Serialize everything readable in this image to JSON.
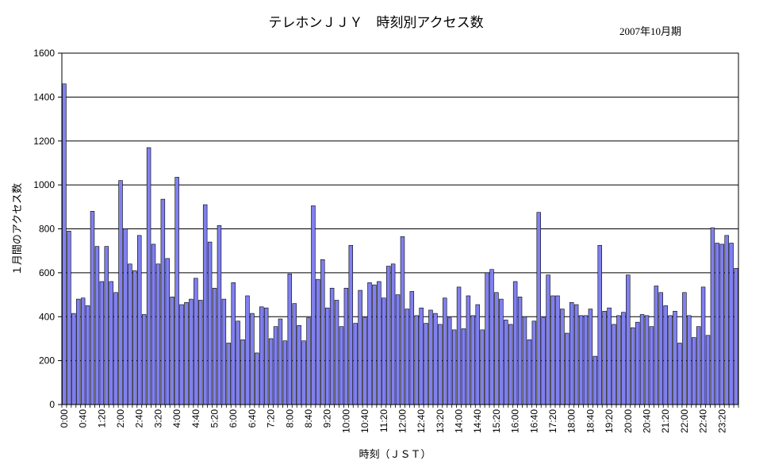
{
  "chart_data": {
    "type": "bar",
    "title": "テレホンＪＪＹ　時刻別アクセス数",
    "subtitle": "2007年10月期",
    "xlabel": "時刻（ＪＳＴ）",
    "ylabel": "１月間のアクセス数",
    "ylim": [
      0,
      1600
    ],
    "yticks": [
      0,
      200,
      400,
      600,
      800,
      1000,
      1200,
      1400,
      1600
    ],
    "grid": true,
    "bar_color": "#8080f0",
    "categories": [
      "0:00",
      "0:10",
      "0:20",
      "0:30",
      "0:40",
      "0:50",
      "1:00",
      "1:10",
      "1:20",
      "1:30",
      "1:40",
      "1:50",
      "2:00",
      "2:10",
      "2:20",
      "2:30",
      "2:40",
      "2:50",
      "3:00",
      "3:10",
      "3:20",
      "3:30",
      "3:40",
      "3:50",
      "4:00",
      "4:10",
      "4:20",
      "4:30",
      "4:40",
      "4:50",
      "5:00",
      "5:10",
      "5:20",
      "5:30",
      "5:40",
      "5:50",
      "6:00",
      "6:10",
      "6:20",
      "6:30",
      "6:40",
      "6:50",
      "7:00",
      "7:10",
      "7:20",
      "7:30",
      "7:40",
      "7:50",
      "8:00",
      "8:10",
      "8:20",
      "8:30",
      "8:40",
      "8:50",
      "9:00",
      "9:10",
      "9:20",
      "9:30",
      "9:40",
      "9:50",
      "10:00",
      "10:10",
      "10:20",
      "10:30",
      "10:40",
      "10:50",
      "11:00",
      "11:10",
      "11:20",
      "11:30",
      "11:40",
      "11:50",
      "12:00",
      "12:10",
      "12:20",
      "12:30",
      "12:40",
      "12:50",
      "13:00",
      "13:10",
      "13:20",
      "13:30",
      "13:40",
      "13:50",
      "14:00",
      "14:10",
      "14:20",
      "14:30",
      "14:40",
      "14:50",
      "15:00",
      "15:10",
      "15:20",
      "15:30",
      "15:40",
      "15:50",
      "16:00",
      "16:10",
      "16:20",
      "16:30",
      "16:40",
      "16:50",
      "17:00",
      "17:10",
      "17:20",
      "17:30",
      "17:40",
      "17:50",
      "18:00",
      "18:10",
      "18:20",
      "18:30",
      "18:40",
      "18:50",
      "19:00",
      "19:10",
      "19:20",
      "19:30",
      "19:40",
      "19:50",
      "20:00",
      "20:10",
      "20:20",
      "20:30",
      "20:40",
      "20:50",
      "21:00",
      "21:10",
      "21:20",
      "21:30",
      "21:40",
      "21:50",
      "22:00",
      "22:10",
      "22:20",
      "22:30",
      "22:40",
      "22:50",
      "23:00",
      "23:10",
      "23:20",
      "23:30",
      "23:40",
      "23:50"
    ],
    "xtick_labels": [
      "0:00",
      "0:40",
      "1:20",
      "2:00",
      "2:40",
      "3:20",
      "4:00",
      "4:40",
      "5:20",
      "6:00",
      "6:40",
      "7:20",
      "8:00",
      "8:40",
      "9:20",
      "10:00",
      "10:40",
      "11:20",
      "12:00",
      "12:40",
      "13:20",
      "14:00",
      "14:40",
      "15:20",
      "16:00",
      "16:40",
      "17:20",
      "18:00",
      "18:40",
      "19:20",
      "20:00",
      "20:40",
      "21:20",
      "22:00",
      "22:40",
      "23:20"
    ],
    "values": [
      1460,
      790,
      415,
      480,
      485,
      450,
      880,
      720,
      560,
      720,
      560,
      510,
      1020,
      800,
      640,
      610,
      770,
      410,
      1170,
      730,
      640,
      935,
      665,
      490,
      1035,
      455,
      465,
      480,
      575,
      475,
      910,
      740,
      530,
      815,
      480,
      280,
      555,
      380,
      295,
      495,
      415,
      235,
      445,
      440,
      300,
      355,
      390,
      290,
      595,
      460,
      360,
      290,
      395,
      905,
      570,
      660,
      440,
      530,
      475,
      355,
      530,
      725,
      370,
      520,
      395,
      555,
      545,
      560,
      485,
      630,
      640,
      500,
      765,
      435,
      515,
      405,
      440,
      370,
      430,
      415,
      365,
      485,
      395,
      340,
      535,
      345,
      495,
      405,
      455,
      340,
      600,
      615,
      510,
      480,
      385,
      365,
      560,
      490,
      400,
      295,
      380,
      875,
      395,
      590,
      495,
      495,
      435,
      325,
      465,
      455,
      405,
      405,
      435,
      220,
      725,
      425,
      440,
      365,
      405,
      420,
      590,
      350,
      375,
      410,
      405,
      355,
      540,
      510,
      450,
      405,
      425,
      280,
      510,
      405,
      305,
      355,
      535,
      315,
      805,
      735,
      730,
      770,
      735,
      620
    ]
  }
}
